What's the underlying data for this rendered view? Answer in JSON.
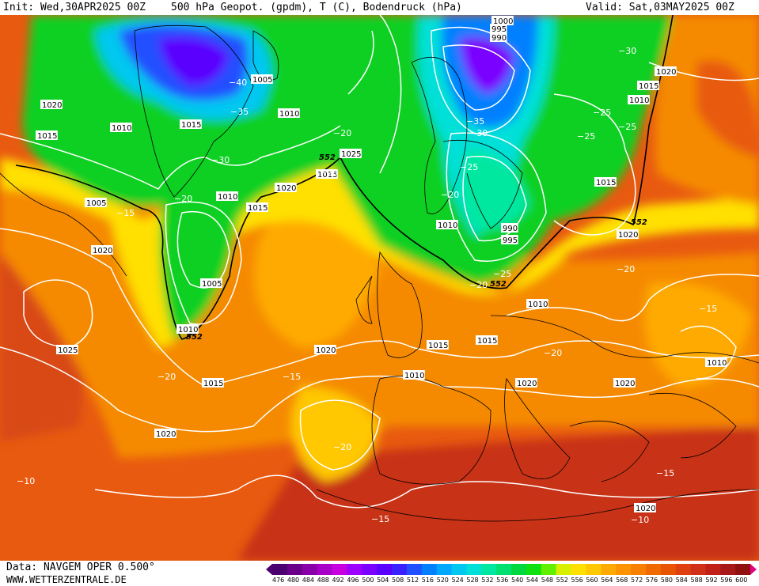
{
  "header": {
    "init": "Init: Wed,30APR2025 00Z",
    "title": "500 hPa Geopot. (gpdm), T (C), Bodendruck (hPa)",
    "valid": "Valid: Sat,03MAY2025 00Z"
  },
  "footer": {
    "source": "Data: NAVGEM OPER 0.500°",
    "url": "WWW.WETTERZENTRALE.DE"
  },
  "scale": {
    "values": [
      "476",
      "480",
      "484",
      "488",
      "492",
      "496",
      "500",
      "504",
      "508",
      "512",
      "516",
      "520",
      "524",
      "528",
      "532",
      "536",
      "540",
      "544",
      "548",
      "552",
      "556",
      "560",
      "564",
      "568",
      "572",
      "576",
      "580",
      "584",
      "588",
      "592",
      "596",
      "600"
    ],
    "colors": [
      "#4b0070",
      "#6a008a",
      "#8a00a8",
      "#a800c8",
      "#c800e0",
      "#9c00ff",
      "#7a00ff",
      "#5a00ff",
      "#3a20ff",
      "#2050ff",
      "#0080ff",
      "#00a8ff",
      "#00c8f0",
      "#00e0d8",
      "#00e8a0",
      "#00e070",
      "#00d840",
      "#10e010",
      "#60f000",
      "#d8f000",
      "#ffe000",
      "#ffc800",
      "#ffaa00",
      "#ff9400",
      "#f88000",
      "#f06a00",
      "#e85400",
      "#e04010",
      "#d03018",
      "#c02018",
      "#a81818",
      "#901010"
    ]
  },
  "map": {
    "isobars": [
      "1005",
      "1010",
      "1015",
      "1020",
      "1025",
      "1000",
      "995",
      "990"
    ],
    "isobar_labels": [
      {
        "t": "1020"
      },
      {
        "t": "1015"
      },
      {
        "t": "1010"
      },
      {
        "t": "1015"
      },
      {
        "t": "1005"
      },
      {
        "t": "1010"
      },
      {
        "t": "1005"
      },
      {
        "t": "1020"
      },
      {
        "t": "1025"
      },
      {
        "t": "1010"
      },
      {
        "t": "1015"
      },
      {
        "t": "1005"
      },
      {
        "t": "1010"
      },
      {
        "t": "1020"
      },
      {
        "t": "1015"
      },
      {
        "t": "1025"
      },
      {
        "t": "1020"
      },
      {
        "t": "1020"
      },
      {
        "t": "1015"
      },
      {
        "t": "1010"
      },
      {
        "t": "1015"
      },
      {
        "t": "1015"
      },
      {
        "t": "1010"
      },
      {
        "t": "1020"
      },
      {
        "t": "1000"
      },
      {
        "t": "995"
      },
      {
        "t": "990"
      },
      {
        "t": "990"
      },
      {
        "t": "995"
      },
      {
        "t": "1020"
      },
      {
        "t": "1015"
      },
      {
        "t": "1010"
      },
      {
        "t": "1015"
      },
      {
        "t": "1020"
      },
      {
        "t": "1010"
      },
      {
        "t": "1020"
      },
      {
        "t": "1020"
      },
      {
        "t": "1010"
      }
    ],
    "temp_labels": [
      {
        "t": "-40"
      },
      {
        "t": "-35"
      },
      {
        "t": "-30"
      },
      {
        "t": "-20"
      },
      {
        "t": "-15"
      },
      {
        "t": "-20"
      },
      {
        "t": "-25"
      },
      {
        "t": "-20"
      },
      {
        "t": "-35"
      },
      {
        "t": "-30"
      },
      {
        "t": "-25"
      },
      {
        "t": "-25"
      },
      {
        "t": "-20"
      },
      {
        "t": "-25"
      },
      {
        "t": "-20"
      },
      {
        "t": "-15"
      },
      {
        "t": "-20"
      },
      {
        "t": "-15"
      },
      {
        "t": "-10"
      },
      {
        "t": "-15"
      },
      {
        "t": "-10"
      },
      {
        "t": "-15"
      },
      {
        "t": "-20"
      },
      {
        "t": "-20"
      },
      {
        "t": "-30"
      },
      {
        "t": "-25"
      },
      {
        "t": "-20"
      }
    ],
    "geopot_labels": [
      {
        "t": "552"
      },
      {
        "t": "552"
      },
      {
        "t": "552"
      },
      {
        "t": "552"
      }
    ]
  }
}
